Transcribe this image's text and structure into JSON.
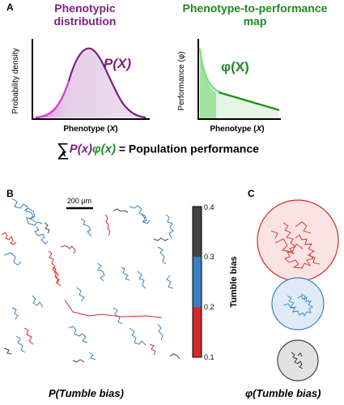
{
  "panel_a": {
    "letter": "A",
    "left_title_line1": "Phenotypic",
    "left_title_line2": "distribution",
    "right_title_line1": "Phenotype-to-performance",
    "right_title_line2": "map",
    "left_ylabel": "Probability density",
    "left_xlabel_text": "Phenotype (",
    "left_xlabel_var": "X",
    "left_xlabel_close": ")",
    "left_curve_label": "P(X)",
    "right_ylabel": "Performance (φ)",
    "right_xlabel_text": "Phenotype (",
    "right_xlabel_var": "X",
    "right_xlabel_close": ")",
    "right_curve_label": "φ(X)",
    "eq_sum": "∑",
    "eq_sub": "x",
    "eq_p": "P(x)",
    "eq_phi": "φ(x)",
    "eq_rest": "= Population performance"
  },
  "panel_b": {
    "letter": "B",
    "scale_bar_label": "200 μm",
    "colorbar_label": "Tumble bias",
    "colorbar_ticks": [
      "0.4",
      "0.3",
      "0.2",
      "0.1"
    ],
    "bottom_label": "P(Tumble bias)"
  },
  "panel_c": {
    "letter": "C",
    "bottom_label": "φ(Tumble bias)"
  },
  "colors": {
    "purple": "#7a1f7c",
    "pink": "#e040d0",
    "green": "#1f8a1f",
    "light_green": "#7fdc7f",
    "red": "#d42a2a",
    "blue": "#3a7fc0",
    "gray": "#444444"
  }
}
